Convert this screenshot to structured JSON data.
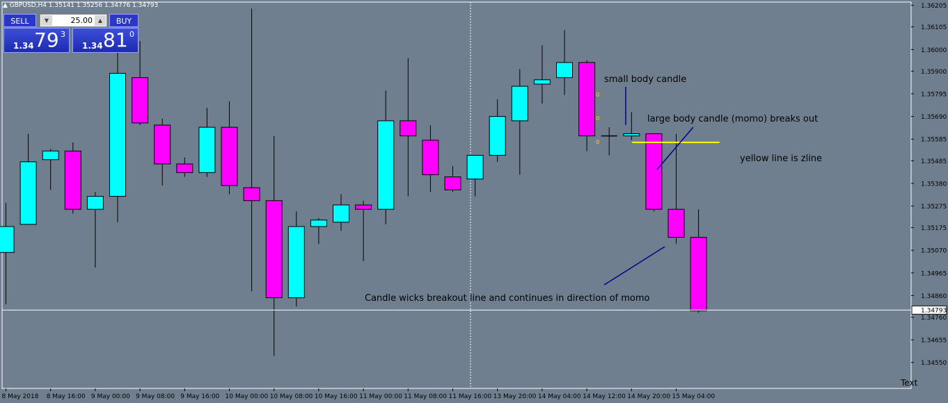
{
  "header": {
    "symbol_info": "GBPUSD,H4  1.35141 1.35256 1.34776 1.34793"
  },
  "trade_panel": {
    "sell_label": "SELL",
    "buy_label": "BUY",
    "lot_value": "25.00",
    "sell_prefix": "1.34",
    "sell_big": "79",
    "sell_sup": "3",
    "buy_prefix": "1.34",
    "buy_big": "81",
    "buy_sup": "0"
  },
  "corner_text": "Text",
  "colors": {
    "background": "#6f7f8f",
    "bull": "#00ffff",
    "bear": "#ff00ff",
    "zline": "#ffff00",
    "annotation_line": "#00008b",
    "current_price_line": "#ffffff"
  },
  "chart_data": {
    "type": "candlestick",
    "symbol": "GBPUSD",
    "timeframe": "H4",
    "ylim": [
      1.3443,
      1.3622
    ],
    "y_ticks": [
      "1.36205",
      "1.36105",
      "1.36000",
      "1.35900",
      "1.35795",
      "1.35690",
      "1.35585",
      "1.35485",
      "1.35380",
      "1.35275",
      "1.35175",
      "1.35070",
      "1.34965",
      "1.34860",
      "1.34760",
      "1.34655",
      "1.34550"
    ],
    "x_tick_labels": [
      "8 May 2018",
      "8 May 16:00",
      "9 May 00:00",
      "9 May 08:00",
      "9 May 16:00",
      "10 May 00:00",
      "10 May 08:00",
      "10 May 16:00",
      "11 May 00:00",
      "11 May 08:00",
      "11 May 16:00",
      "13 May 20:00",
      "14 May 04:00",
      "14 May 12:00",
      "14 May 20:00",
      "15 May 04:00"
    ],
    "current_price": "1.34793",
    "candles": [
      {
        "o": 1.3506,
        "h": 1.3529,
        "l": 1.3482,
        "c": 1.3518
      },
      {
        "o": 1.3519,
        "h": 1.3561,
        "l": 1.3519,
        "c": 1.3548
      },
      {
        "o": 1.3549,
        "h": 1.3554,
        "l": 1.3535,
        "c": 1.3553
      },
      {
        "o": 1.3553,
        "h": 1.3557,
        "l": 1.3524,
        "c": 1.3526
      },
      {
        "o": 1.3526,
        "h": 1.3534,
        "l": 1.3499,
        "c": 1.3532
      },
      {
        "o": 1.3532,
        "h": 1.3603,
        "l": 1.352,
        "c": 1.3589
      },
      {
        "o": 1.3587,
        "h": 1.3604,
        "l": 1.3565,
        "c": 1.3566
      },
      {
        "o": 1.3565,
        "h": 1.3568,
        "l": 1.3537,
        "c": 1.3547
      },
      {
        "o": 1.3547,
        "h": 1.355,
        "l": 1.3541,
        "c": 1.3543
      },
      {
        "o": 1.3543,
        "h": 1.3573,
        "l": 1.3541,
        "c": 1.3564
      },
      {
        "o": 1.3564,
        "h": 1.3576,
        "l": 1.3533,
        "c": 1.3537
      },
      {
        "o": 1.3536,
        "h": 1.3619,
        "l": 1.3488,
        "c": 1.353
      },
      {
        "o": 1.353,
        "h": 1.356,
        "l": 1.3458,
        "c": 1.3485
      },
      {
        "o": 1.3485,
        "h": 1.3525,
        "l": 1.3481,
        "c": 1.3518
      },
      {
        "o": 1.3518,
        "h": 1.3522,
        "l": 1.351,
        "c": 1.3521
      },
      {
        "o": 1.352,
        "h": 1.3533,
        "l": 1.3516,
        "c": 1.3528
      },
      {
        "o": 1.3528,
        "h": 1.353,
        "l": 1.3502,
        "c": 1.3526
      },
      {
        "o": 1.3526,
        "h": 1.3581,
        "l": 1.3519,
        "c": 1.3567
      },
      {
        "o": 1.3567,
        "h": 1.3596,
        "l": 1.3532,
        "c": 1.356
      },
      {
        "o": 1.3558,
        "h": 1.3565,
        "l": 1.3534,
        "c": 1.3542
      },
      {
        "o": 1.3541,
        "h": 1.3546,
        "l": 1.3534,
        "c": 1.3535
      },
      {
        "o": 1.354,
        "h": 1.3551,
        "l": 1.3532,
        "c": 1.3551
      },
      {
        "o": 1.3551,
        "h": 1.3577,
        "l": 1.3548,
        "c": 1.3569
      },
      {
        "o": 1.3567,
        "h": 1.3591,
        "l": 1.3542,
        "c": 1.3583
      },
      {
        "o": 1.3584,
        "h": 1.3602,
        "l": 1.3575,
        "c": 1.3586
      },
      {
        "o": 1.3587,
        "h": 1.3609,
        "l": 1.3579,
        "c": 1.3594
      },
      {
        "o": 1.3594,
        "h": 1.3595,
        "l": 1.3553,
        "c": 1.356
      },
      {
        "o": 1.356,
        "h": 1.3564,
        "l": 1.3551,
        "c": 1.356
      },
      {
        "o": 1.356,
        "h": 1.3571,
        "l": 1.3558,
        "c": 1.3561
      },
      {
        "o": 1.3561,
        "h": 1.3561,
        "l": 1.3525,
        "c": 1.3526
      },
      {
        "o": 1.3526,
        "h": 1.3561,
        "l": 1.351,
        "c": 1.3513
      },
      {
        "o": 1.3513,
        "h": 1.3526,
        "l": 1.3478,
        "c": 1.3479
      }
    ],
    "zline": {
      "price": 1.3557,
      "from_index": 28,
      "to_index": 32
    },
    "annotations": [
      {
        "text": "small body candle"
      },
      {
        "text": "large body candle (momo) breaks out"
      },
      {
        "text": "yellow line is zline"
      },
      {
        "text": "Candle wicks breakout line and continues in direction of momo"
      }
    ],
    "small_markers": [
      "0",
      "0",
      "0"
    ]
  }
}
